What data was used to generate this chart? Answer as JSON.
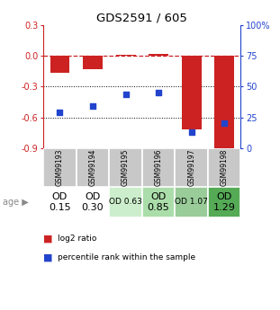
{
  "title": "GDS2591 / 605",
  "samples": [
    "GSM99193",
    "GSM99194",
    "GSM99195",
    "GSM99196",
    "GSM99197",
    "GSM99198"
  ],
  "log2_ratio": [
    -0.17,
    -0.13,
    0.01,
    0.02,
    -0.72,
    -0.93
  ],
  "percentile_rank": [
    29,
    34,
    44,
    45,
    13,
    20
  ],
  "bar_color": "#cc2222",
  "dot_color": "#2244cc",
  "ylim_left": [
    -0.9,
    0.3
  ],
  "ylim_right": [
    0,
    100
  ],
  "yticks_left": [
    0.3,
    0.0,
    -0.3,
    -0.6,
    -0.9
  ],
  "yticks_right": [
    100,
    75,
    50,
    25,
    0
  ],
  "age_labels": [
    "OD\n0.15",
    "OD\n0.30",
    "OD 0.63",
    "OD\n0.85",
    "OD 1.07",
    "OD\n1.29"
  ],
  "age_bg_colors": [
    "#ffffff",
    "#ffffff",
    "#cceecc",
    "#aaddaa",
    "#99cc99",
    "#55aa55"
  ],
  "age_font_sizes": [
    8,
    8,
    6.5,
    8,
    6.5,
    8
  ],
  "bg_gsm": "#c8c8c8",
  "dashed_line_color": "#cc2222"
}
